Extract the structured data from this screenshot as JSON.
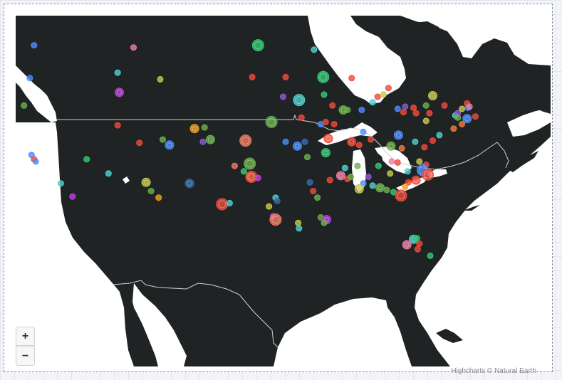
{
  "map": {
    "credits": "Highcharts © Natural Earth",
    "water_color": "#ffffff",
    "land_color": "#202324",
    "border_color": "#d0d0d0",
    "zoom_in_label": "+",
    "zoom_out_label": "−"
  },
  "chart_data": {
    "type": "scatter",
    "chart_subtype": "mapbubble",
    "region": "United States (contiguous)",
    "points": [
      {
        "lon": -123.3,
        "lat": 48.8,
        "color": "#4a8cff",
        "size": "small"
      },
      {
        "lon": -111.4,
        "lat": 48.6,
        "color": "#f07aa0",
        "size": "small"
      },
      {
        "lon": -96.5,
        "lat": 48.8,
        "color": "#2ecc71",
        "size": "large"
      },
      {
        "lon": -89.8,
        "lat": 48.4,
        "color": "#4dd0d0",
        "size": "small"
      },
      {
        "lon": -123.8,
        "lat": 45.8,
        "color": "#4a8cff",
        "size": "small"
      },
      {
        "lon": -113.3,
        "lat": 46.3,
        "color": "#4dd0d0",
        "size": "small"
      },
      {
        "lon": -108.2,
        "lat": 45.7,
        "color": "#c8c84a",
        "size": "small"
      },
      {
        "lon": -97.2,
        "lat": 45.9,
        "color": "#f04a3a",
        "size": "small"
      },
      {
        "lon": -93.2,
        "lat": 45.9,
        "color": "#f04a3a",
        "size": "small"
      },
      {
        "lon": -88.7,
        "lat": 45.9,
        "color": "#2ecc71",
        "size": "large"
      },
      {
        "lon": -85.3,
        "lat": 45.8,
        "color": "#f04a3a",
        "size": "small"
      },
      {
        "lon": -124.5,
        "lat": 43.3,
        "color": "#6ab04c",
        "size": "small"
      },
      {
        "lon": -113.1,
        "lat": 44.5,
        "color": "#c040e0",
        "size": "medium"
      },
      {
        "lon": -93.5,
        "lat": 44.1,
        "color": "#8a5cd0",
        "size": "small"
      },
      {
        "lon": -91.6,
        "lat": 43.8,
        "color": "#4dd0d0",
        "size": "large"
      },
      {
        "lon": -88.6,
        "lat": 44.3,
        "color": "#2ecc71",
        "size": "small"
      },
      {
        "lon": -87.6,
        "lat": 43.3,
        "color": "#f04a3a",
        "size": "small"
      },
      {
        "lon": -86.3,
        "lat": 42.9,
        "color": "#6ab04c",
        "size": "medium"
      },
      {
        "lon": -85.8,
        "lat": 42.9,
        "color": "#6ab04c",
        "size": "small"
      },
      {
        "lon": -84.1,
        "lat": 42.9,
        "color": "#4a8cff",
        "size": "small"
      },
      {
        "lon": -82.8,
        "lat": 43.6,
        "color": "#4dd0d0",
        "size": "small"
      },
      {
        "lon": -82.2,
        "lat": 44.1,
        "color": "#f04a3a",
        "size": "small"
      },
      {
        "lon": -81.5,
        "lat": 44.3,
        "color": "#c8c84a",
        "size": "small"
      },
      {
        "lon": -80.9,
        "lat": 44.9,
        "color": "#f04a3a",
        "size": "small"
      },
      {
        "lon": -113.3,
        "lat": 41.5,
        "color": "#f04a3a",
        "size": "small"
      },
      {
        "lon": -104.1,
        "lat": 41.2,
        "color": "#f0a020",
        "size": "medium"
      },
      {
        "lon": -102.9,
        "lat": 41.3,
        "color": "#6ab04c",
        "size": "small"
      },
      {
        "lon": -94.9,
        "lat": 41.8,
        "color": "#6ab04c",
        "size": "large"
      },
      {
        "lon": -91.3,
        "lat": 42.2,
        "color": "#f04a3a",
        "size": "small"
      },
      {
        "lon": -89.0,
        "lat": 41.6,
        "color": "#4a8cff",
        "size": "small"
      },
      {
        "lon": -88.4,
        "lat": 41.8,
        "color": "#f04a3a",
        "size": "small"
      },
      {
        "lon": -87.4,
        "lat": 41.6,
        "color": "#f04a3a",
        "size": "small"
      },
      {
        "lon": -75.6,
        "lat": 44.2,
        "color": "#c8c84a",
        "size": "medium"
      },
      {
        "lon": -76.4,
        "lat": 43.3,
        "color": "#6ab04c",
        "size": "small"
      },
      {
        "lon": -77.9,
        "lat": 43.1,
        "color": "#f04a3a",
        "size": "small"
      },
      {
        "lon": -78.9,
        "lat": 43.2,
        "color": "#8a5cd0",
        "size": "small"
      },
      {
        "lon": -79.8,
        "lat": 43.0,
        "color": "#4a8cff",
        "size": "small"
      },
      {
        "lon": -79.1,
        "lat": 42.7,
        "color": "#f04a3a",
        "size": "small"
      },
      {
        "lon": -74.2,
        "lat": 43.3,
        "color": "#f04a3a",
        "size": "small"
      },
      {
        "lon": -72.9,
        "lat": 42.4,
        "color": "#4dd0d0",
        "size": "small"
      },
      {
        "lon": -72.6,
        "lat": 42.6,
        "color": "#8a5cd0",
        "size": "small"
      },
      {
        "lon": -72.1,
        "lat": 43.0,
        "color": "#c8c84a",
        "size": "small"
      },
      {
        "lon": -71.5,
        "lat": 43.5,
        "color": "#f04a3a",
        "size": "small"
      },
      {
        "lon": -71.4,
        "lat": 43.1,
        "color": "#4a8cff",
        "size": "small"
      },
      {
        "lon": -71.2,
        "lat": 43.2,
        "color": "#f07aa0",
        "size": "small"
      },
      {
        "lon": -72.6,
        "lat": 42.2,
        "color": "#6ab04c",
        "size": "small"
      },
      {
        "lon": -72.1,
        "lat": 41.6,
        "color": "#f07a40",
        "size": "small"
      },
      {
        "lon": -73.1,
        "lat": 41.2,
        "color": "#f07a40",
        "size": "small"
      },
      {
        "lon": -71.5,
        "lat": 42.1,
        "color": "#4a8cff",
        "size": "medium"
      },
      {
        "lon": -70.5,
        "lat": 42.3,
        "color": "#f04a3a",
        "size": "small"
      },
      {
        "lon": -76.0,
        "lat": 42.6,
        "color": "#f04a3a",
        "size": "small"
      },
      {
        "lon": -77.6,
        "lat": 42.6,
        "color": "#f04a3a",
        "size": "small"
      },
      {
        "lon": -76.4,
        "lat": 41.9,
        "color": "#c8c84a",
        "size": "small"
      },
      {
        "lon": -123.6,
        "lat": 38.8,
        "color": "#4a8cff",
        "size": "small"
      },
      {
        "lon": -123.3,
        "lat": 38.4,
        "color": "#f04a3a",
        "size": "small"
      },
      {
        "lon": -123.1,
        "lat": 38.2,
        "color": "#4a8cff",
        "size": "small"
      },
      {
        "lon": -110.7,
        "lat": 39.9,
        "color": "#f04a3a",
        "size": "small"
      },
      {
        "lon": -107.9,
        "lat": 40.2,
        "color": "#6ab04c",
        "size": "small"
      },
      {
        "lon": -107.1,
        "lat": 39.7,
        "color": "#4a8cff",
        "size": "medium"
      },
      {
        "lon": -103.1,
        "lat": 40.0,
        "color": "#8a5cd0",
        "size": "small"
      },
      {
        "lon": -102.2,
        "lat": 40.2,
        "color": "#6ab04c",
        "size": "medium"
      },
      {
        "lon": -98.0,
        "lat": 40.1,
        "color": "#f07a60",
        "size": "large"
      },
      {
        "lon": -93.2,
        "lat": 40.0,
        "color": "#4a8cff",
        "size": "small"
      },
      {
        "lon": -91.8,
        "lat": 39.6,
        "color": "#4a8cff",
        "size": "medium"
      },
      {
        "lon": -90.9,
        "lat": 40.0,
        "color": "#3a6ab0",
        "size": "small"
      },
      {
        "lon": -88.1,
        "lat": 40.3,
        "color": "#f04a3a",
        "size": "medium"
      },
      {
        "lon": -85.3,
        "lat": 40.0,
        "color": "#f04a3a",
        "size": "medium"
      },
      {
        "lon": -84.4,
        "lat": 39.7,
        "color": "#f04a3a",
        "size": "small"
      },
      {
        "lon": -83.0,
        "lat": 40.2,
        "color": "#f04a3a",
        "size": "small"
      },
      {
        "lon": -83.9,
        "lat": 40.9,
        "color": "#4a8cff",
        "size": "small"
      },
      {
        "lon": -80.6,
        "lat": 39.6,
        "color": "#6ab04c",
        "size": "medium"
      },
      {
        "lon": -79.7,
        "lat": 40.6,
        "color": "#4a8cff",
        "size": "medium"
      },
      {
        "lon": -79.3,
        "lat": 39.4,
        "color": "#f07a40",
        "size": "small"
      },
      {
        "lon": -77.7,
        "lat": 40.0,
        "color": "#4dd0d0",
        "size": "small"
      },
      {
        "lon": -76.6,
        "lat": 39.5,
        "color": "#f04a3a",
        "size": "small"
      },
      {
        "lon": -75.6,
        "lat": 40.1,
        "color": "#f04a3a",
        "size": "small"
      },
      {
        "lon": -74.8,
        "lat": 40.6,
        "color": "#4dd0d0",
        "size": "small"
      },
      {
        "lon": -88.4,
        "lat": 39.0,
        "color": "#2ecc71",
        "size": "medium"
      },
      {
        "lon": -90.6,
        "lat": 38.6,
        "color": "#6ab04c",
        "size": "small"
      },
      {
        "lon": -117.0,
        "lat": 38.4,
        "color": "#2ecc71",
        "size": "small"
      },
      {
        "lon": -114.4,
        "lat": 37.1,
        "color": "#4dd0d0",
        "size": "small"
      },
      {
        "lon": -99.3,
        "lat": 37.8,
        "color": "#f07a60",
        "size": "small"
      },
      {
        "lon": -97.5,
        "lat": 38.0,
        "color": "#6ab04c",
        "size": "large"
      },
      {
        "lon": -98.2,
        "lat": 37.3,
        "color": "#2ecc71",
        "size": "small"
      },
      {
        "lon": -97.4,
        "lat": 36.8,
        "color": "#6ab04c",
        "size": "medium"
      },
      {
        "lon": -82.1,
        "lat": 37.8,
        "color": "#2ecc71",
        "size": "small"
      },
      {
        "lon": -80.5,
        "lat": 38.2,
        "color": "#f07aa0",
        "size": "small"
      },
      {
        "lon": -80.7,
        "lat": 37.1,
        "color": "#c8c84a",
        "size": "small"
      },
      {
        "lon": -79.8,
        "lat": 38.1,
        "color": "#f04a3a",
        "size": "small"
      },
      {
        "lon": -78.6,
        "lat": 37.3,
        "color": "#4dd0d0",
        "size": "small"
      },
      {
        "lon": -76.4,
        "lat": 37.9,
        "color": "#f04a3a",
        "size": "small"
      },
      {
        "lon": -77.2,
        "lat": 38.2,
        "color": "#c8c84a",
        "size": "small"
      },
      {
        "lon": -76.8,
        "lat": 37.4,
        "color": "#4a8cff",
        "size": "large"
      },
      {
        "lon": -76.2,
        "lat": 37.0,
        "color": "#f04a3a",
        "size": "large"
      },
      {
        "lon": -77.6,
        "lat": 36.5,
        "color": "#f04a3a",
        "size": "medium"
      },
      {
        "lon": -78.5,
        "lat": 36.3,
        "color": "#f04a3a",
        "size": "small"
      },
      {
        "lon": -78.9,
        "lat": 35.9,
        "color": "#f0a020",
        "size": "small"
      },
      {
        "lon": -80.3,
        "lat": 35.4,
        "color": "#2ecc71",
        "size": "small"
      },
      {
        "lon": -79.4,
        "lat": 35.1,
        "color": "#f04a3a",
        "size": "large"
      },
      {
        "lon": -81.1,
        "lat": 35.6,
        "color": "#6ab04c",
        "size": "small"
      },
      {
        "lon": -81.9,
        "lat": 35.8,
        "color": "#6ab04c",
        "size": "medium"
      },
      {
        "lon": -82.8,
        "lat": 36.0,
        "color": "#4dd0d0",
        "size": "small"
      },
      {
        "lon": -83.3,
        "lat": 36.8,
        "color": "#8a5cd0",
        "size": "small"
      },
      {
        "lon": -84.6,
        "lat": 37.8,
        "color": "#6ab04c",
        "size": "small"
      },
      {
        "lon": -85.8,
        "lat": 36.6,
        "color": "#f04a3a",
        "size": "small"
      },
      {
        "lon": -86.6,
        "lat": 36.9,
        "color": "#f07aa0",
        "size": "medium"
      },
      {
        "lon": -85.4,
        "lat": 36.8,
        "color": "#6ab04c",
        "size": "small"
      },
      {
        "lon": -86.1,
        "lat": 37.6,
        "color": "#4dd0d0",
        "size": "small"
      },
      {
        "lon": -87.9,
        "lat": 36.5,
        "color": "#f04a3a",
        "size": "small"
      },
      {
        "lon": -83.9,
        "lat": 36.2,
        "color": "#4a8cff",
        "size": "small"
      },
      {
        "lon": -84.4,
        "lat": 35.7,
        "color": "#c8c84a",
        "size": "medium"
      },
      {
        "lon": -89.9,
        "lat": 35.5,
        "color": "#f04a3a",
        "size": "small"
      },
      {
        "lon": -89.4,
        "lat": 34.9,
        "color": "#6ab04c",
        "size": "small"
      },
      {
        "lon": -90.3,
        "lat": 36.3,
        "color": "#3a6ab0",
        "size": "small"
      },
      {
        "lon": -97.3,
        "lat": 36.8,
        "color": "#f04a3a",
        "size": "large"
      },
      {
        "lon": -96.5,
        "lat": 36.7,
        "color": "#c040e0",
        "size": "small"
      },
      {
        "lon": -109.9,
        "lat": 36.3,
        "color": "#c8c84a",
        "size": "medium"
      },
      {
        "lon": -109.3,
        "lat": 35.5,
        "color": "#6ab04c",
        "size": "small"
      },
      {
        "lon": -108.4,
        "lat": 34.9,
        "color": "#f0a020",
        "size": "small"
      },
      {
        "lon": -104.7,
        "lat": 36.2,
        "color": "#3a6ab0",
        "size": "medium"
      },
      {
        "lon": -120.1,
        "lat": 36.2,
        "color": "#4dd0d0",
        "size": "small"
      },
      {
        "lon": -118.7,
        "lat": 35.0,
        "color": "#c040e0",
        "size": "small"
      },
      {
        "lon": -100.8,
        "lat": 34.3,
        "color": "#f04a3a",
        "size": "large"
      },
      {
        "lon": -99.9,
        "lat": 34.4,
        "color": "#4dd0d0",
        "size": "small"
      },
      {
        "lon": -94.4,
        "lat": 34.9,
        "color": "#4dd0d0",
        "size": "small"
      },
      {
        "lon": -94.2,
        "lat": 34.6,
        "color": "#3a6ab0",
        "size": "small"
      },
      {
        "lon": -95.2,
        "lat": 34.1,
        "color": "#c8c84a",
        "size": "small"
      },
      {
        "lon": -94.7,
        "lat": 33.2,
        "color": "#c040e0",
        "size": "small"
      },
      {
        "lon": -94.4,
        "lat": 32.9,
        "color": "#f07a60",
        "size": "large"
      },
      {
        "lon": -91.7,
        "lat": 32.6,
        "color": "#c8c84a",
        "size": "small"
      },
      {
        "lon": -91.6,
        "lat": 32.1,
        "color": "#4dd0d0",
        "size": "small"
      },
      {
        "lon": -89.0,
        "lat": 33.1,
        "color": "#6ab04c",
        "size": "small"
      },
      {
        "lon": -88.3,
        "lat": 32.9,
        "color": "#c040e0",
        "size": "medium"
      },
      {
        "lon": -88.6,
        "lat": 32.6,
        "color": "#6ab04c",
        "size": "small"
      },
      {
        "lon": -77.9,
        "lat": 31.1,
        "color": "#4dd0d0",
        "size": "medium"
      },
      {
        "lon": -77.5,
        "lat": 31.2,
        "color": "#2ecc71",
        "size": "small"
      },
      {
        "lon": -78.7,
        "lat": 30.6,
        "color": "#f07aa0",
        "size": "medium"
      },
      {
        "lon": -77.2,
        "lat": 30.7,
        "color": "#f04a3a",
        "size": "small"
      },
      {
        "lon": -77.4,
        "lat": 30.2,
        "color": "#f04a3a",
        "size": "small"
      },
      {
        "lon": -75.9,
        "lat": 29.6,
        "color": "#2ecc71",
        "size": "small"
      }
    ]
  }
}
